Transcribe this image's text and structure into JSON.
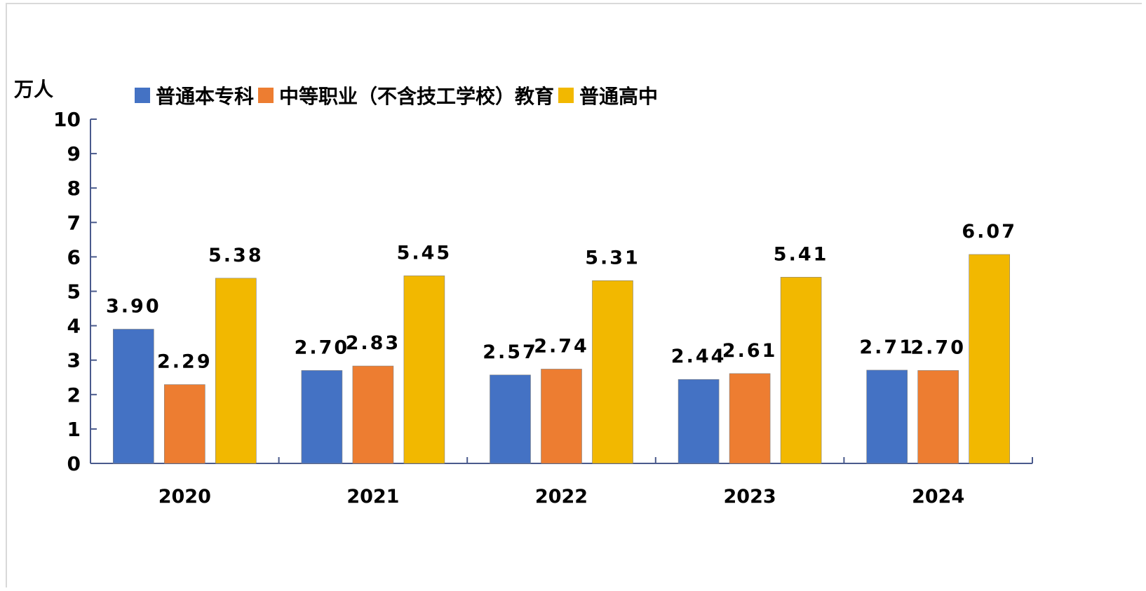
{
  "chart_data": {
    "type": "bar",
    "ylabel": "万人",
    "ylim": [
      0,
      10
    ],
    "yticks": [
      "0",
      "1",
      "2",
      "3",
      "4",
      "5",
      "6",
      "7",
      "8",
      "9",
      "10"
    ],
    "categories": [
      "2020",
      "2021",
      "2022",
      "2023",
      "2024"
    ],
    "series": [
      {
        "name": "普通本专科",
        "color": "#4472c4",
        "values": [
          3.9,
          2.7,
          2.57,
          2.44,
          2.71
        ],
        "labels": [
          "3.90",
          "2.70",
          "2.57",
          "2.44",
          "2.71"
        ]
      },
      {
        "name": "中等职业（不含技工学校）教育",
        "color": "#ed7d31",
        "values": [
          2.29,
          2.83,
          2.74,
          2.61,
          2.7
        ],
        "labels": [
          "2.29",
          "2.83",
          "2.74",
          "2.61",
          "2.70"
        ]
      },
      {
        "name": "普通高中",
        "color": "#f2b800",
        "values": [
          5.38,
          5.45,
          5.31,
          5.41,
          6.07
        ],
        "labels": [
          "5.38",
          "5.45",
          "5.31",
          "5.41",
          "6.07"
        ]
      }
    ],
    "grid": false,
    "legend_position": "top"
  }
}
